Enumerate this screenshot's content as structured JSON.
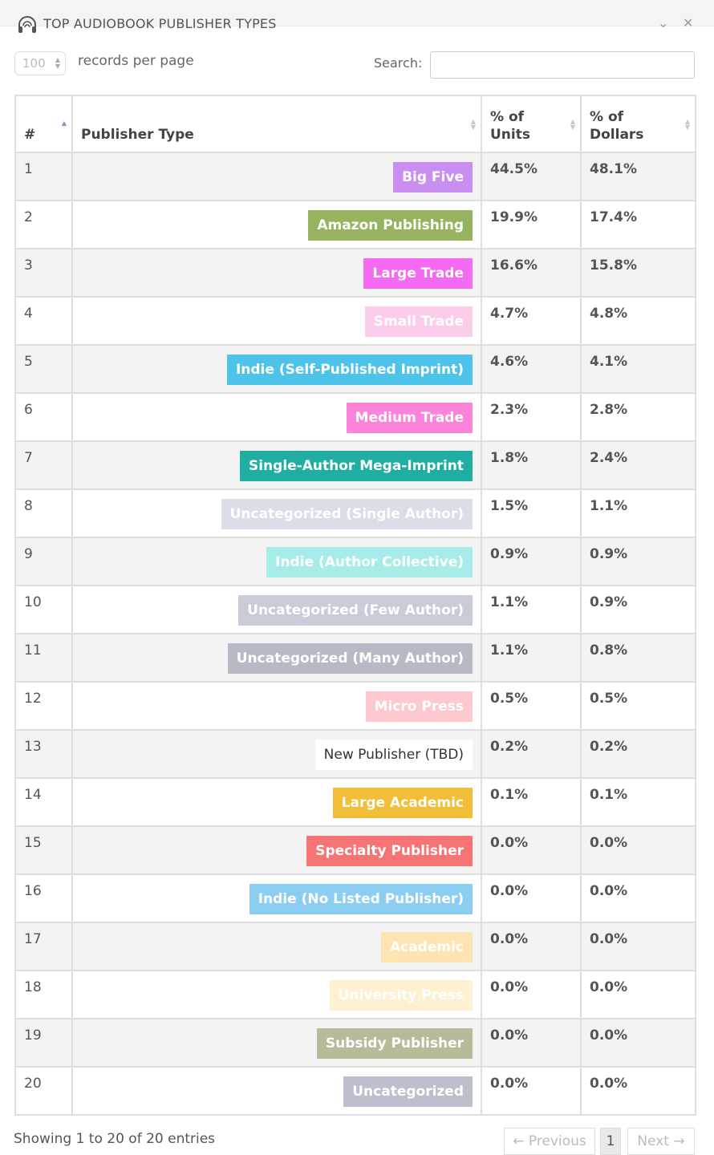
{
  "panel": {
    "title": "TOP AUDIOBOOK PUBLISHER TYPES",
    "icon": "headphones-icon",
    "collapse_icon": "chevron-down-icon",
    "close_icon": "close-icon",
    "collapse_glyph": "⌄",
    "close_glyph": "✕"
  },
  "controls": {
    "length_value": "100",
    "length_label": "records per page",
    "search_label": "Search:",
    "search_value": ""
  },
  "table": {
    "columns": [
      {
        "label": "#"
      },
      {
        "label": "Publisher Type"
      },
      {
        "label": "% of Units"
      },
      {
        "label": "% of Dollars"
      }
    ],
    "rows": [
      {
        "num": "1",
        "type": "Big Five",
        "color": "#c88ef0",
        "units": "44.5%",
        "dollars": "48.1%"
      },
      {
        "num": "2",
        "type": "Amazon Publishing",
        "color": "#97b35f",
        "units": "19.9%",
        "dollars": "17.4%"
      },
      {
        "num": "3",
        "type": "Large Trade",
        "color": "#f56af2",
        "units": "16.6%",
        "dollars": "15.8%"
      },
      {
        "num": "4",
        "type": "Small Trade",
        "color": "#fbcdea",
        "units": "4.7%",
        "dollars": "4.8%"
      },
      {
        "num": "5",
        "type": "Indie (Self-Published Imprint)",
        "color": "#4dc3ea",
        "units": "4.6%",
        "dollars": "4.1%"
      },
      {
        "num": "6",
        "type": "Medium Trade",
        "color": "#fb83d9",
        "units": "2.3%",
        "dollars": "2.8%"
      },
      {
        "num": "7",
        "type": "Single-Author Mega-Imprint",
        "color": "#20aea2",
        "units": "1.8%",
        "dollars": "2.4%"
      },
      {
        "num": "8",
        "type": "Uncategorized (Single Author)",
        "color": "#dbdee6",
        "units": "1.5%",
        "dollars": "1.1%"
      },
      {
        "num": "9",
        "type": "Indie (Author Collective)",
        "color": "#a8ece9",
        "units": "0.9%",
        "dollars": "0.9%"
      },
      {
        "num": "10",
        "type": "Uncategorized (Few Author)",
        "color": "#c9cbd6",
        "units": "1.1%",
        "dollars": "0.9%"
      },
      {
        "num": "11",
        "type": "Uncategorized (Many Author)",
        "color": "#b7bac5",
        "units": "1.1%",
        "dollars": "0.8%"
      },
      {
        "num": "12",
        "type": "Micro Press",
        "color": "#fdc9cf",
        "units": "0.5%",
        "dollars": "0.5%"
      },
      {
        "num": "13",
        "type": "New Publisher (TBD)",
        "color": "#ffffff",
        "text_color": "#333333",
        "plain": true,
        "units": "0.2%",
        "dollars": "0.2%"
      },
      {
        "num": "14",
        "type": "Large Academic",
        "color": "#f2bd37",
        "units": "0.1%",
        "dollars": "0.1%"
      },
      {
        "num": "15",
        "type": "Specialty Publisher",
        "color": "#f77474",
        "units": "0.0%",
        "dollars": "0.0%"
      },
      {
        "num": "16",
        "type": "Indie (No Listed Publisher)",
        "color": "#8ccdf2",
        "units": "0.0%",
        "dollars": "0.0%"
      },
      {
        "num": "17",
        "type": "Academic",
        "color": "#fde4b2",
        "units": "0.0%",
        "dollars": "0.0%"
      },
      {
        "num": "18",
        "type": "University Press",
        "color": "#fdf1d2",
        "units": "0.0%",
        "dollars": "0.0%"
      },
      {
        "num": "19",
        "type": "Subsidy Publisher",
        "color": "#b9ba9a",
        "units": "0.0%",
        "dollars": "0.0%"
      },
      {
        "num": "20",
        "type": "Uncategorized",
        "color": "#bcc0cd",
        "units": "0.0%",
        "dollars": "0.0%"
      }
    ]
  },
  "footer": {
    "info": "Showing 1 to 20 of 20 entries",
    "prev_label": "← Previous",
    "current_page": "1",
    "next_label": "Next →"
  }
}
